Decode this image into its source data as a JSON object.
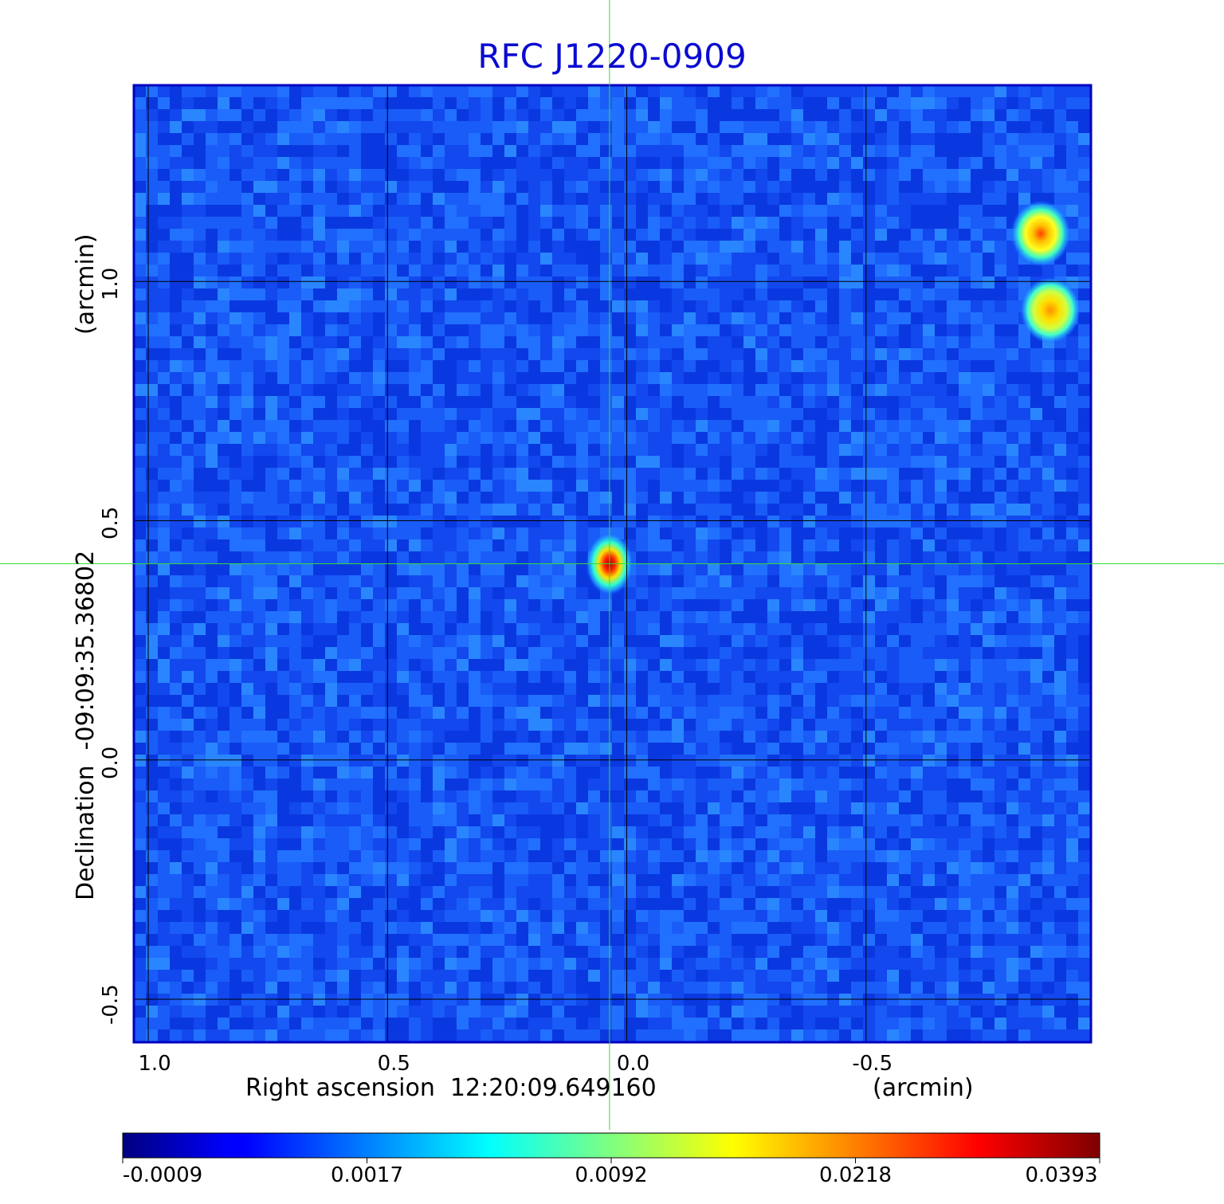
{
  "chart_data": {
    "type": "heatmap",
    "title": "RFC J1220-0909",
    "xlabel": "Right ascension  12:20:09.649160",
    "xlabel_units": "(arcmin)",
    "ylabel": "Declination  -09:09:35.36802",
    "ylabel_units": "(arcmin)",
    "xlim": [
      1.03,
      -0.97
    ],
    "ylim": [
      -0.59,
      1.41
    ],
    "x_ticks": [
      {
        "value": 1.0,
        "label": "1.0"
      },
      {
        "value": 0.5,
        "label": "0.5"
      },
      {
        "value": 0.0,
        "label": "0.0"
      },
      {
        "value": -0.5,
        "label": "-0.5"
      }
    ],
    "y_ticks": [
      {
        "value": -0.5,
        "label": "-0.5"
      },
      {
        "value": 0.0,
        "label": "0.0"
      },
      {
        "value": 0.5,
        "label": "0.5"
      },
      {
        "value": 1.0,
        "label": "1.0"
      }
    ],
    "grid": true,
    "crosshair": {
      "x": 0.036,
      "y": 0.41
    },
    "sources": [
      {
        "x": 0.036,
        "y": 0.41,
        "peak": 0.0393
      },
      {
        "x": -0.865,
        "y": 1.1,
        "peak": 0.034
      },
      {
        "x": -0.885,
        "y": 0.94,
        "peak": 0.026
      }
    ],
    "colorbar": {
      "colormap": "jet",
      "tick_labels": [
        "-0.0009",
        "0.0017",
        "0.0092",
        "0.0218",
        "0.0393"
      ]
    }
  },
  "colors": {
    "title": "#0a0ad2",
    "crosshair": "#33dd33",
    "grid": "#000000"
  }
}
